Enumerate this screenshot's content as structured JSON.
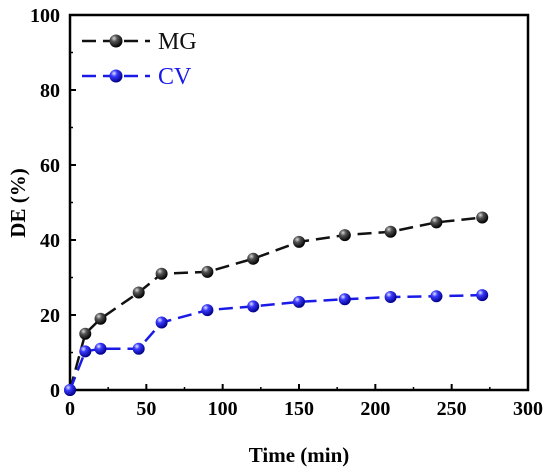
{
  "chart_data": {
    "type": "line",
    "xlabel": "Time (min)",
    "ylabel": "DE (%)",
    "xlim": [
      0,
      300
    ],
    "ylim": [
      0,
      100
    ],
    "xticks": [
      0,
      50,
      100,
      150,
      200,
      250,
      300
    ],
    "yticks": [
      0,
      20,
      40,
      60,
      80,
      100
    ],
    "grid": false,
    "legend_position": "top-left",
    "line_style": "dashed",
    "marker": "sphere",
    "series": [
      {
        "name": "MG",
        "color": "#111111",
        "x": [
          0,
          10,
          20,
          45,
          60,
          90,
          120,
          150,
          180,
          210,
          240,
          270
        ],
        "y": [
          0,
          15,
          19,
          26,
          31,
          31.5,
          35,
          39.5,
          41.3,
          42.2,
          44.7,
          46
        ]
      },
      {
        "name": "CV",
        "color": "#1a1ae6",
        "x": [
          0,
          10,
          20,
          45,
          60,
          90,
          120,
          150,
          180,
          210,
          240,
          270
        ],
        "y": [
          0,
          10.3,
          11,
          11,
          18,
          21.3,
          22.3,
          23.5,
          24.2,
          24.8,
          25,
          25.3
        ]
      }
    ]
  }
}
